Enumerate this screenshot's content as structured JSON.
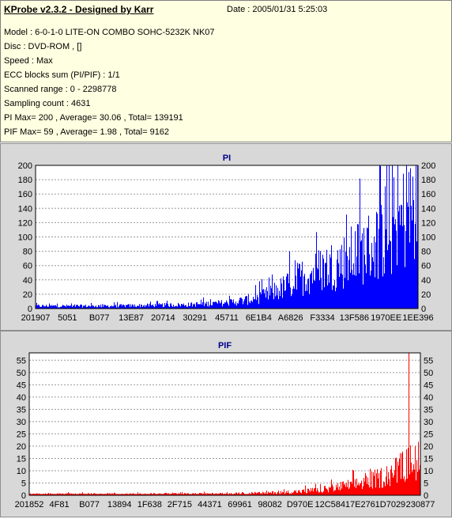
{
  "header": {
    "title": "KProbe v2.3.2 - Designed by Karr",
    "date": "Date : 2005/01/31 5:25:03",
    "lines": [
      "Model : 6-0-1-0 LITE-ON COMBO SOHC-5232K NK07",
      "Disc : DVD-ROM ,  []",
      "Speed : Max",
      "ECC blocks sum (PI/PIF) : 1/1",
      "Scanned range : 0 - 2298778",
      "Sampling count : 4631",
      "PI Max= 200 , Average= 30.06 , Total= 139191",
      "PIF Max= 59 , Average= 1.98 , Total= 9162"
    ]
  },
  "chart_data": [
    {
      "type": "bar",
      "title": "PI",
      "color": "#0000ff",
      "ylim": [
        0,
        200
      ],
      "yticks": [
        0,
        20,
        40,
        60,
        80,
        100,
        120,
        140,
        160,
        180,
        200
      ],
      "xticks": [
        "201907",
        "5051",
        "B077",
        "13E87",
        "20714",
        "30291",
        "45711",
        "6E1B4",
        "A6826",
        "F3334",
        "13F586",
        "1970EE",
        "1EE396"
      ],
      "grid": true,
      "envelope": [
        [
          0,
          4
        ],
        [
          0.1,
          4
        ],
        [
          0.2,
          4
        ],
        [
          0.3,
          5
        ],
        [
          0.4,
          6
        ],
        [
          0.5,
          9
        ],
        [
          0.55,
          13
        ],
        [
          0.6,
          20
        ],
        [
          0.65,
          33
        ],
        [
          0.7,
          50
        ],
        [
          0.75,
          62
        ],
        [
          0.8,
          72
        ],
        [
          0.85,
          88
        ],
        [
          0.9,
          105
        ],
        [
          0.95,
          130
        ],
        [
          1.0,
          165
        ]
      ],
      "max": 200
    },
    {
      "type": "bar",
      "title": "PIF",
      "color": "#ff0000",
      "ylim": [
        0,
        58
      ],
      "yticks": [
        0,
        5,
        10,
        15,
        20,
        25,
        30,
        35,
        40,
        45,
        50,
        55
      ],
      "xticks": [
        "201852",
        "4F81",
        "B077",
        "13894",
        "1F638",
        "2F715",
        "44371",
        "69961",
        "98082",
        "D970E",
        "12C584",
        "17E276",
        "1D7029",
        "230877"
      ],
      "grid": true,
      "envelope": [
        [
          0,
          0.6
        ],
        [
          0.3,
          0.6
        ],
        [
          0.5,
          0.7
        ],
        [
          0.6,
          1
        ],
        [
          0.7,
          1.8
        ],
        [
          0.75,
          2.5
        ],
        [
          0.8,
          4
        ],
        [
          0.85,
          5.5
        ],
        [
          0.9,
          8
        ],
        [
          0.95,
          12
        ],
        [
          1.0,
          17
        ]
      ],
      "max": 59
    }
  ]
}
